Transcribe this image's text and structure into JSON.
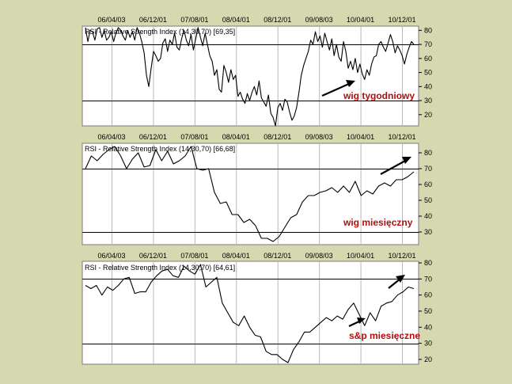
{
  "chart_data": [
    {
      "type": "line",
      "title": "RSI - Relative Strength Index (14,30,70) [69,35]",
      "annotation": "wig  tygodniowy",
      "x_tick_labels": [
        "06/04/03",
        "06/12/01",
        "07/08/01",
        "08/04/01",
        "08/12/01",
        "09/08/03",
        "10/04/01",
        "10/12/01"
      ],
      "y_ticks": [
        20,
        30,
        40,
        50,
        60,
        70,
        80
      ],
      "ylim": [
        12,
        83
      ],
      "reference_lines": [
        30,
        70
      ],
      "grid": true,
      "series": [
        {
          "values": [
            82,
            72,
            80,
            79,
            73,
            81,
            82,
            75,
            80,
            73,
            75,
            79,
            72,
            78,
            82,
            80,
            76,
            73,
            80,
            75,
            79,
            73,
            82,
            78,
            72,
            64,
            48,
            40,
            53,
            65,
            62,
            58,
            60,
            71,
            74,
            65,
            73,
            70,
            78,
            68,
            66,
            74,
            80,
            73,
            69,
            77,
            66,
            74,
            82,
            75,
            69,
            78,
            70,
            62,
            58,
            48,
            52,
            38,
            36,
            55,
            50,
            43,
            52,
            45,
            48,
            33,
            36,
            31,
            28,
            35,
            30,
            36,
            40,
            34,
            44,
            32,
            29,
            26,
            34,
            21,
            18,
            12,
            25,
            28,
            23,
            31,
            29,
            22,
            16,
            19,
            25,
            36,
            48,
            55,
            60,
            65,
            73,
            70,
            79,
            72,
            76,
            68,
            78,
            72,
            66,
            74,
            62,
            70,
            61,
            58,
            72,
            65,
            53,
            58,
            52,
            60,
            50,
            56,
            49,
            45,
            52,
            48,
            56,
            61,
            62,
            70,
            72,
            68,
            65,
            71,
            77,
            72,
            64,
            69,
            66,
            62,
            56,
            63,
            68,
            72,
            70
          ]
        }
      ]
    },
    {
      "type": "line",
      "title": "RSI - Relative Strength Index (14,30,70) [66,68]",
      "annotation": "wig  miesięczny",
      "x_tick_labels": [
        "06/04/03",
        "06/12/01",
        "07/08/01",
        "08/04/01",
        "08/12/01",
        "09/08/03",
        "10/04/01",
        "10/12/01"
      ],
      "y_ticks": [
        30,
        40,
        50,
        60,
        70,
        80
      ],
      "ylim": [
        22,
        86
      ],
      "reference_lines": [
        30,
        70
      ],
      "grid": true,
      "series": [
        {
          "values": [
            70,
            78,
            75,
            79,
            82,
            84,
            78,
            70,
            76,
            80,
            71,
            72,
            82,
            75,
            81,
            73,
            75,
            78,
            84,
            70,
            69,
            70,
            55,
            48,
            49,
            41,
            41,
            36,
            38,
            34,
            26,
            26,
            24,
            27,
            33,
            39,
            41,
            49,
            53,
            53,
            55,
            56,
            58,
            55,
            59,
            55,
            62,
            53,
            56,
            54,
            59,
            61,
            59,
            63,
            63,
            65,
            68
          ]
        }
      ]
    },
    {
      "type": "line",
      "title": "RSI - Relative Strength Index (14,30,70) [64,61]",
      "annotation": "s&p miesięczne",
      "x_tick_labels": [
        "06/04/03",
        "06/12/01",
        "07/08/01",
        "08/04/01",
        "08/12/01",
        "09/08/03",
        "10/04/01",
        "10/12/01"
      ],
      "y_ticks": [
        20,
        30,
        40,
        50,
        60,
        70,
        80
      ],
      "ylim": [
        17,
        81
      ],
      "reference_lines": [
        30,
        70
      ],
      "grid": true,
      "series": [
        {
          "values": [
            66,
            64,
            66,
            60,
            65,
            63,
            66,
            70,
            71,
            61,
            62,
            62,
            68,
            72,
            75,
            76,
            72,
            71,
            78,
            75,
            73,
            79,
            65,
            68,
            71,
            55,
            49,
            43,
            41,
            47,
            40,
            35,
            34,
            25,
            23,
            23,
            20,
            18,
            26,
            31,
            37,
            37,
            40,
            43,
            46,
            44,
            47,
            45,
            51,
            55,
            48,
            41,
            49,
            44,
            53,
            55,
            56,
            60,
            62,
            65,
            64
          ]
        }
      ]
    }
  ]
}
